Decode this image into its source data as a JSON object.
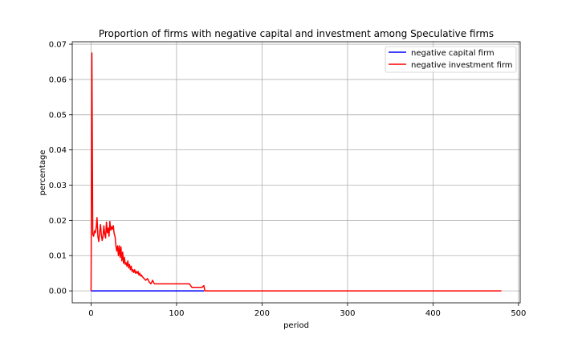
{
  "chart_data": {
    "type": "line",
    "title": "Proportion of firms with negative capital and investment among Speculative firms",
    "xlabel": "period",
    "ylabel": "percentage",
    "xlim": [
      -22,
      502
    ],
    "ylim": [
      -0.0034,
      0.0707
    ],
    "xticks": [
      0,
      100,
      200,
      300,
      400,
      500
    ],
    "yticks": [
      0.0,
      0.01,
      0.02,
      0.03,
      0.04,
      0.05,
      0.06,
      0.07
    ],
    "xtick_labels": [
      "0",
      "100",
      "200",
      "300",
      "400",
      "500"
    ],
    "ytick_labels": [
      "0.00",
      "0.01",
      "0.02",
      "0.03",
      "0.04",
      "0.05",
      "0.06",
      "0.07"
    ],
    "grid": true,
    "legend_position": "top-right",
    "series": [
      {
        "name": "negative capital firm",
        "color": "#0000ff",
        "x": [
          0,
          132
        ],
        "y": [
          0.0,
          0.0
        ]
      },
      {
        "name": "negative investment firm",
        "color": "#ff0000",
        "x": [
          0,
          1,
          2,
          3,
          4,
          5,
          6,
          7,
          8,
          9,
          10,
          11,
          12,
          13,
          14,
          15,
          16,
          17,
          18,
          19,
          20,
          21,
          22,
          23,
          24,
          25,
          26,
          27,
          28,
          29,
          30,
          31,
          32,
          33,
          34,
          35,
          36,
          37,
          38,
          39,
          40,
          41,
          42,
          43,
          44,
          45,
          46,
          47,
          48,
          49,
          50,
          51,
          52,
          53,
          54,
          55,
          56,
          57,
          58,
          59,
          60,
          62,
          64,
          66,
          68,
          70,
          72,
          74,
          76,
          78,
          80,
          82,
          85,
          88,
          92,
          96,
          100,
          105,
          110,
          115,
          118,
          122,
          126,
          130,
          132,
          133,
          135,
          140,
          150,
          200,
          300,
          400,
          480
        ],
        "y": [
          0.0,
          0.0675,
          0.016,
          0.0155,
          0.017,
          0.0165,
          0.018,
          0.0208,
          0.0155,
          0.014,
          0.0165,
          0.0188,
          0.016,
          0.0143,
          0.0155,
          0.0185,
          0.016,
          0.015,
          0.0195,
          0.0165,
          0.0178,
          0.0155,
          0.0197,
          0.0172,
          0.0182,
          0.0175,
          0.0185,
          0.0163,
          0.0155,
          0.013,
          0.0113,
          0.0128,
          0.01,
          0.0128,
          0.0095,
          0.0125,
          0.0085,
          0.011,
          0.0078,
          0.0095,
          0.0075,
          0.008,
          0.007,
          0.0085,
          0.0065,
          0.0075,
          0.006,
          0.007,
          0.0055,
          0.006,
          0.0052,
          0.006,
          0.005,
          0.0055,
          0.005,
          0.0055,
          0.0045,
          0.005,
          0.0042,
          0.0045,
          0.004,
          0.0035,
          0.003,
          0.0035,
          0.0025,
          0.002,
          0.003,
          0.002,
          0.002,
          0.002,
          0.002,
          0.002,
          0.002,
          0.002,
          0.002,
          0.002,
          0.002,
          0.002,
          0.002,
          0.002,
          0.001,
          0.001,
          0.001,
          0.001,
          0.0015,
          0.0,
          0.0,
          0.0,
          0.0,
          0.0,
          0.0,
          0.0,
          0.0
        ]
      }
    ]
  }
}
